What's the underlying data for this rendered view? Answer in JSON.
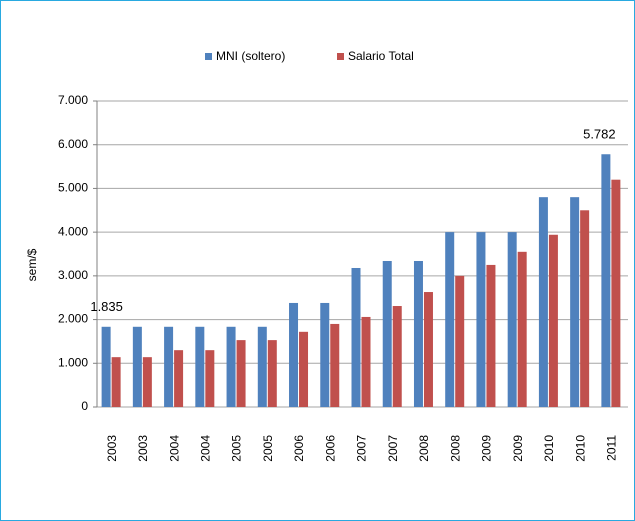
{
  "chart_data": {
    "type": "bar",
    "categories": [
      "2003",
      "2003",
      "2004",
      "2004",
      "2005",
      "2005",
      "2006",
      "2006",
      "2007",
      "2007",
      "2008",
      "2008",
      "2009",
      "2009",
      "2010",
      "2010",
      "2011"
    ],
    "series": [
      {
        "name": "MNI (soltero)",
        "color": "#4f81bd",
        "values": [
          1835,
          1835,
          1835,
          1835,
          1835,
          1835,
          2380,
          2380,
          3180,
          3340,
          3340,
          4000,
          4000,
          4000,
          4800,
          4800,
          5782
        ],
        "value_labels": [
          "1.835",
          null,
          null,
          null,
          null,
          null,
          null,
          null,
          null,
          null,
          null,
          null,
          null,
          null,
          null,
          null,
          "5.782"
        ]
      },
      {
        "name": "Salario Total",
        "color": "#c0504d",
        "values": [
          1140,
          1140,
          1300,
          1300,
          1530,
          1530,
          1720,
          1900,
          2060,
          2310,
          2630,
          3000,
          3250,
          3550,
          3940,
          4500,
          5200
        ]
      }
    ],
    "ylabel": "sem/$",
    "ylim": [
      0,
      7000
    ],
    "yticks": [
      0,
      {
        "value": 1000,
        "label": "1.000"
      },
      {
        "value": 2000,
        "label": "2.000"
      },
      {
        "value": 3000,
        "label": "3.000"
      },
      {
        "value": 4000,
        "label": "4.000"
      },
      {
        "value": 5000,
        "label": "5.000"
      },
      {
        "value": 6000,
        "label": "6.000"
      },
      {
        "value": 7000,
        "label": "7.000"
      }
    ],
    "grid": true,
    "legend": "top"
  }
}
